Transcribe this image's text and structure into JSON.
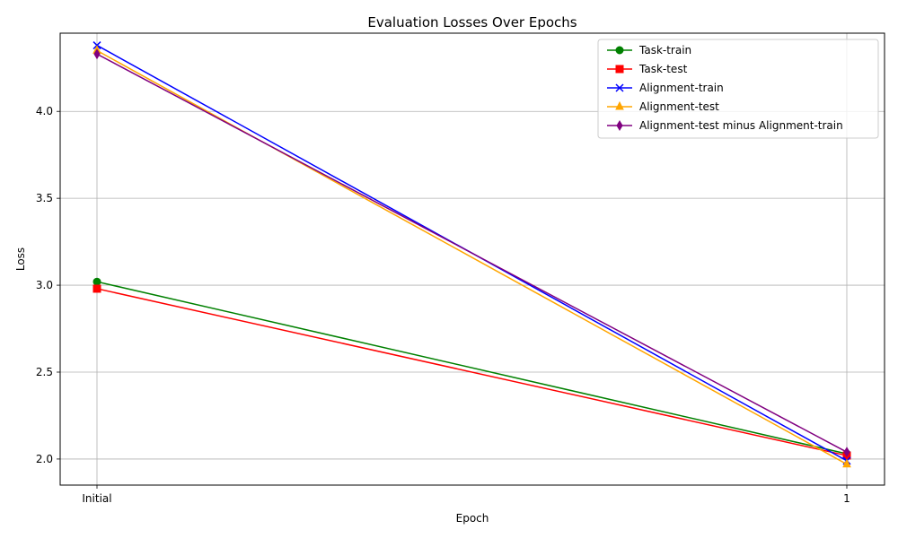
{
  "chart_data": {
    "type": "line",
    "title": "Evaluation Losses Over Epochs",
    "xlabel": "Epoch",
    "ylabel": "Loss",
    "categories": [
      "Initial",
      "1"
    ],
    "ylim": [
      1.85,
      4.45
    ],
    "yticks": [
      "2.0",
      "2.5",
      "3.0",
      "3.5",
      "4.0"
    ],
    "grid": true,
    "legend_position": "top-right",
    "series": [
      {
        "name": "Task-train",
        "values": [
          3.02,
          2.03
        ],
        "color": "#008000",
        "marker": "circle"
      },
      {
        "name": "Task-test",
        "values": [
          2.98,
          2.02
        ],
        "color": "#ff0000",
        "marker": "square"
      },
      {
        "name": "Alignment-train",
        "values": [
          4.38,
          1.99
        ],
        "color": "#0000ff",
        "marker": "x"
      },
      {
        "name": "Alignment-test",
        "values": [
          4.35,
          1.97
        ],
        "color": "#ffa500",
        "marker": "triangle"
      },
      {
        "name": "Alignment-test minus Alignment-train",
        "values": [
          4.33,
          2.04
        ],
        "color": "#800080",
        "marker": "diamond"
      }
    ]
  }
}
